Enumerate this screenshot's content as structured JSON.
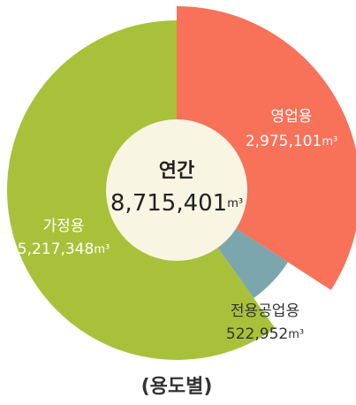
{
  "chart_data": {
    "type": "pie",
    "title": "(용도별)",
    "center_label": "연간",
    "center_value_label": "8,715,401",
    "unit": "m³",
    "categories": [
      "영업용",
      "전용공업용",
      "가정용"
    ],
    "values": [
      2975101,
      522952,
      5217348
    ],
    "value_labels": [
      "2,975,101",
      "522,952",
      "5,217,348"
    ],
    "colors": [
      "#f87159",
      "#7ba6ae",
      "#a9c13a"
    ]
  }
}
